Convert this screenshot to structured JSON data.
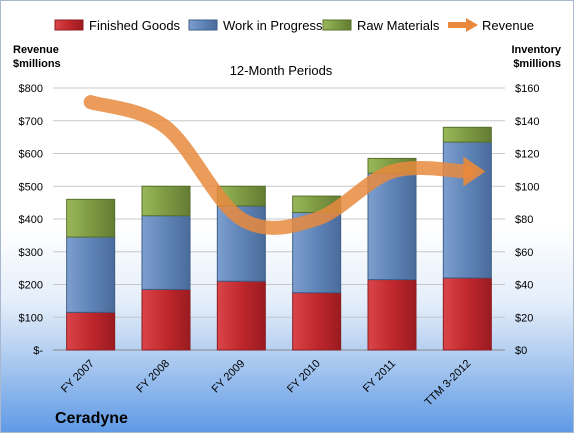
{
  "company": "Ceradyne",
  "chart_data": {
    "type": "bar",
    "title": "12-Month Periods",
    "categories": [
      "FY 2007",
      "FY 2008",
      "FY 2009",
      "FY 2010",
      "FY 2011",
      "TTM 3-2012"
    ],
    "y_left": {
      "label_line1": "Revenue",
      "label_line2": "$millions",
      "range": [
        0,
        800
      ],
      "ticks": [
        "$-",
        "$100",
        "$200",
        "$300",
        "$400",
        "$500",
        "$600",
        "$700",
        "$800"
      ]
    },
    "y_right": {
      "label_line1": "Inventory",
      "label_line2": "$millions",
      "range": [
        0,
        160
      ],
      "ticks": [
        "$0",
        "$20",
        "$40",
        "$60",
        "$80",
        "$100",
        "$120",
        "$140",
        "$160"
      ]
    },
    "stacked_series_axis": "right",
    "series": [
      {
        "name": "Finished Goods",
        "color": "#c0282d",
        "values": [
          23,
          37,
          42,
          35,
          43,
          44
        ]
      },
      {
        "name": "Work in Progress",
        "color": "#5f84b7",
        "values": [
          46,
          45,
          46,
          49,
          65,
          83
        ]
      },
      {
        "name": "Raw Materials",
        "color": "#7d9a43",
        "values": [
          23,
          18,
          12,
          10,
          9,
          9
        ]
      }
    ],
    "line_series": {
      "name": "Revenue",
      "axis": "left",
      "color": "#e8893d",
      "values": [
        757,
        680,
        400,
        400,
        545,
        545
      ]
    },
    "legend_position": "top"
  }
}
